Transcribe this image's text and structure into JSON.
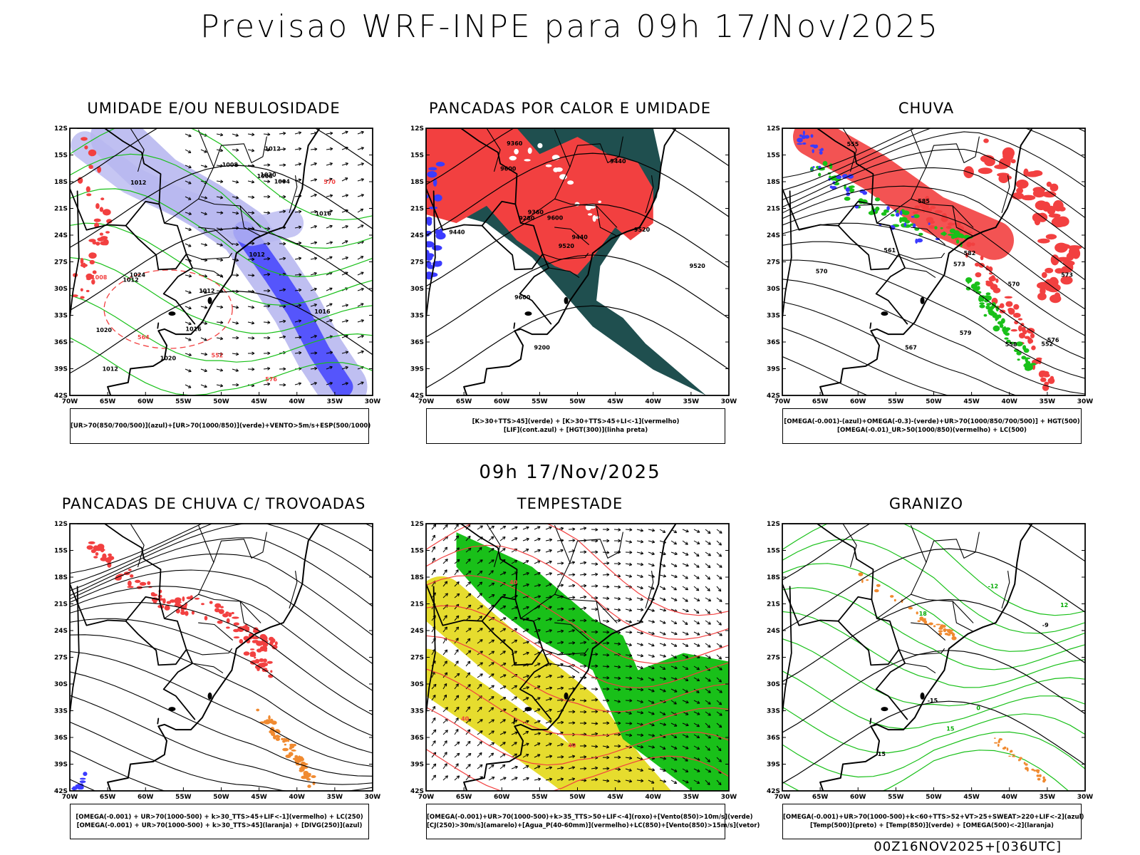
{
  "title": "Previsao WRF-INPE  para 09h 17/Nov/2025",
  "mid_title": "09h 17/Nov/2025",
  "run_label": "00Z16NOV2025+[036UTC]",
  "axes": {
    "y_ticks": [
      "12S",
      "15S",
      "18S",
      "21S",
      "24S",
      "27S",
      "30S",
      "33S",
      "36S",
      "39S",
      "42S"
    ],
    "x_ticks": [
      "70W",
      "65W",
      "60W",
      "55W",
      "50W",
      "45W",
      "40W",
      "35W",
      "30W"
    ]
  },
  "colors": {
    "red": "#f24040",
    "green": "#19c019",
    "blue": "#3b3bff",
    "lavender": "#b8b8f0",
    "dark_green": "#1f4f4f",
    "yellow": "#e6dc2e",
    "orange": "#f08a30",
    "black": "#000000"
  },
  "chart_data": [
    {
      "type": "heatmap",
      "title": "UMIDADE E/OU NEBULOSIDADE",
      "legend": [
        "[UR>70(850/700/500)](azul)+[UR>70(1000/850)](verde)+VENTO>5m/s+ESP(500/1000)"
      ],
      "contour_labels": [
        "1012",
        "1012",
        "1012",
        "1016",
        "1016",
        "1020",
        "1020",
        "1024",
        "1020",
        "1012",
        "1012",
        "1008",
        "1004",
        "1008",
        "1016",
        "1012",
        "1008",
        "576",
        "570",
        "564",
        "552"
      ]
    },
    {
      "type": "heatmap",
      "title": "PANCADAS POR CALOR E UMIDADE",
      "legend": [
        "[K>30+TTS>45](verde) + [K>30+TTS>45+LI<-1](vermelho)",
        "[LIF](cont.azul) + [HGT(300)](linha preta)"
      ],
      "contour_labels": [
        "9520",
        "9600",
        "9600",
        "9600",
        "9440",
        "9520",
        "9360",
        "9360",
        "9440",
        "9520",
        "9440",
        "9280",
        "9200"
      ]
    },
    {
      "type": "heatmap",
      "title": "CHUVA",
      "legend": [
        "[OMEGA(-0.001)-(azul)+OMEGA(-0.3)-(verde)+UR>70(1000/850/700/500)] + HGT(500)",
        "[OMEGA(-0.01)_UR>50(1000/850)(vermelho) + LC(500)"
      ],
      "contour_labels": [
        "585",
        "582",
        "576",
        "573",
        "567",
        "570",
        "579",
        "561",
        "558",
        "555",
        "552",
        "570",
        "573"
      ]
    },
    {
      "type": "heatmap",
      "title": "PANCADAS DE CHUVA C/ TROVOADAS",
      "legend": [
        "[OMEGA(-0.001) + UR>70(1000-500) + k>30_TTS>45+LIF<-1](vermelho) + LC(250)",
        "[OMEGA(-0.001) + UR>70(1000-500) + k>30_TTS>45](laranja) + [DIVG(250)](azul)"
      ],
      "contour_labels": []
    },
    {
      "type": "heatmap",
      "title": "TEMPESTADE",
      "legend": [
        "[OMEGA(-0.001)+UR>70(1000-500)+k>35_TTS>50+LIF<-4](roxo)+[Vento(850)>10m/s](verde)",
        "[CJ(250)>30m/s](amarelo)+[Agua_P(40-60mm)](vermelho)+LC(850)+[Vento(850)>15m/s](vetor)"
      ],
      "contour_labels": [
        "40",
        "40",
        "40"
      ]
    },
    {
      "type": "heatmap",
      "title": "GRANIZO",
      "legend": [
        "[OMEGA(-0.001)+UR>70(1000-500)+k<60+TTS>52+VT>25+SWEAT>220+LIF<-2](azul)",
        "[Temp(500)](preto) + [Temp(850)](verde) + [OMEGA(500)<-2](laranja)"
      ],
      "contour_labels": [
        "-15",
        "15",
        "-9",
        "0",
        "-12",
        "12",
        "18",
        "15"
      ]
    }
  ]
}
